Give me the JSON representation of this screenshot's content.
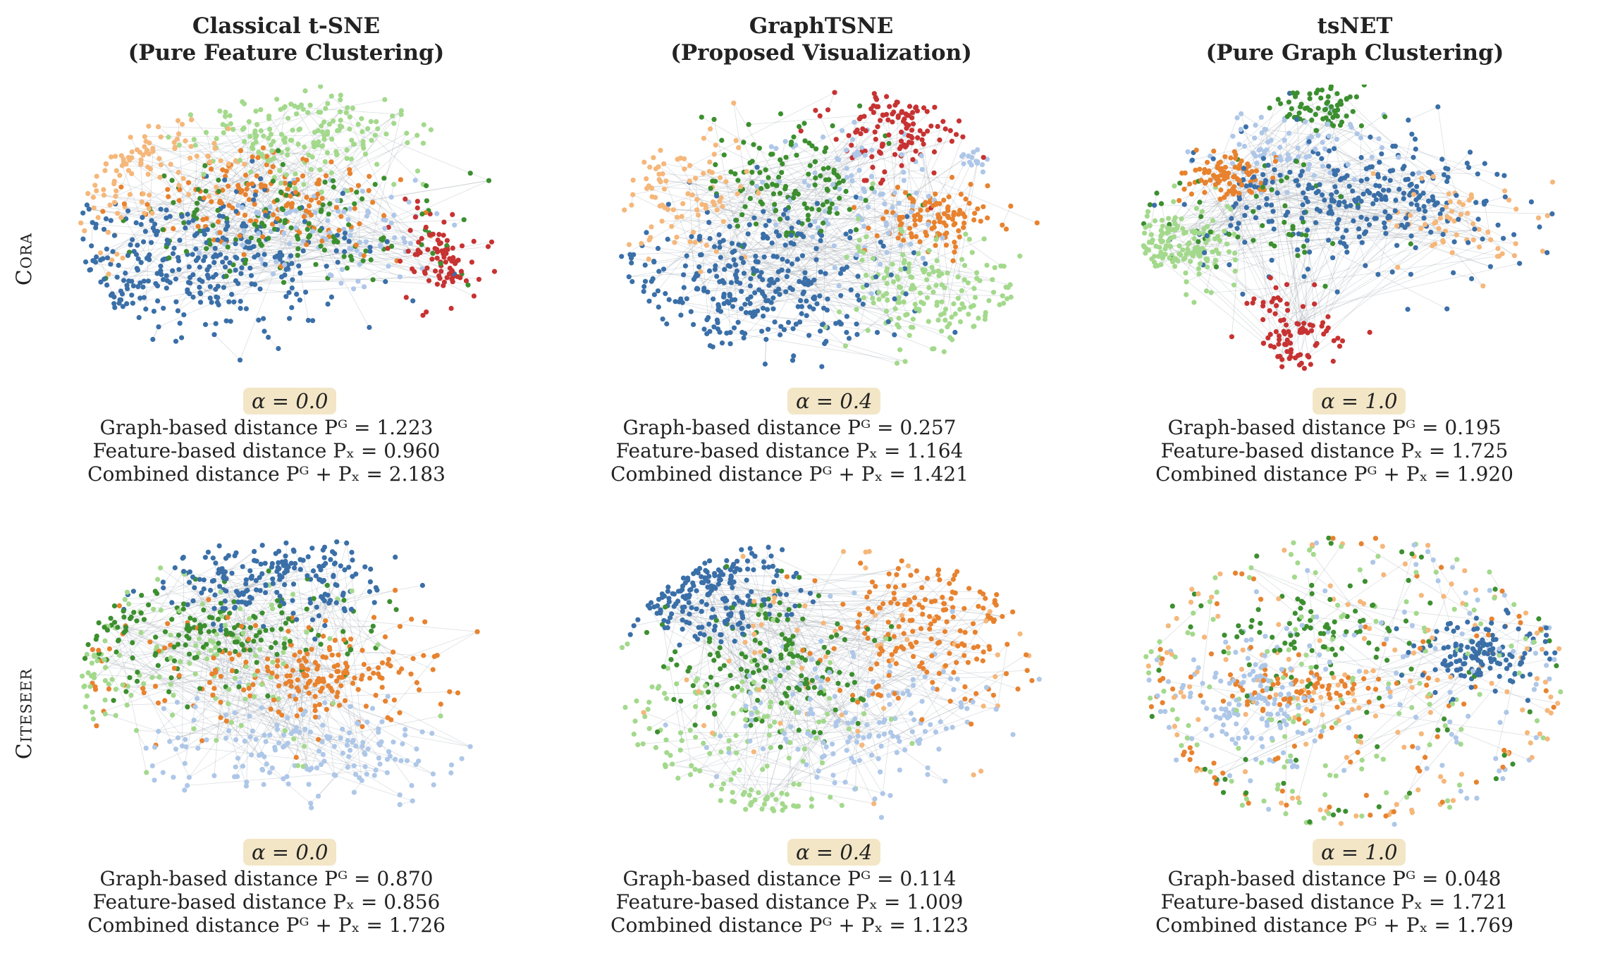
{
  "columns": [
    {
      "title_line1": "Classical t-SNE",
      "title_line2": "(Pure Feature Clustering)"
    },
    {
      "title_line1": "GraphTSNE",
      "title_line2": "(Proposed Visualization)"
    },
    {
      "title_line1": "tsNET",
      "title_line2": "(Pure Graph Clustering)"
    }
  ],
  "rows": [
    {
      "label": "Cora"
    },
    {
      "label": "Citeseer"
    }
  ],
  "metric_labels": {
    "graph": "Graph-based distance Pᴳ =",
    "feature": "Feature-based distance Pₓ =",
    "combined": "Combined distance Pᴳ + Pₓ ="
  },
  "colors": {
    "blue": "#3a6fa8",
    "light_blue": "#aec7e8",
    "orange": "#e8822e",
    "light_orange": "#f5b77a",
    "green": "#3c8f2f",
    "light_green": "#a3d98c",
    "red": "#c73232",
    "edge": "#9aa3ad",
    "badge": "#f3e6c6"
  },
  "chart_data": [
    {
      "type": "scatter",
      "dataset": "Cora",
      "method": "Classical t-SNE",
      "alpha": "α = 0.0",
      "graph_distance": "1.223",
      "feature_distance": "0.960",
      "combined_distance": "2.183"
    },
    {
      "type": "scatter",
      "dataset": "Cora",
      "method": "GraphTSNE",
      "alpha": "α = 0.4",
      "graph_distance": "0.257",
      "feature_distance": "1.164",
      "combined_distance": "1.421"
    },
    {
      "type": "scatter",
      "dataset": "Cora",
      "method": "tsNET",
      "alpha": "α = 1.0",
      "graph_distance": "0.195",
      "feature_distance": "1.725",
      "combined_distance": "1.920"
    },
    {
      "type": "scatter",
      "dataset": "Citeseer",
      "method": "Classical t-SNE",
      "alpha": "α = 0.0",
      "graph_distance": "0.870",
      "feature_distance": "0.856",
      "combined_distance": "1.726"
    },
    {
      "type": "scatter",
      "dataset": "Citeseer",
      "method": "GraphTSNE",
      "alpha": "α = 0.4",
      "graph_distance": "0.114",
      "feature_distance": "1.009",
      "combined_distance": "1.123"
    },
    {
      "type": "scatter",
      "dataset": "Citeseer",
      "method": "tsNET",
      "alpha": "α = 1.0",
      "graph_distance": "0.048",
      "feature_distance": "1.721",
      "combined_distance": "1.769"
    }
  ]
}
